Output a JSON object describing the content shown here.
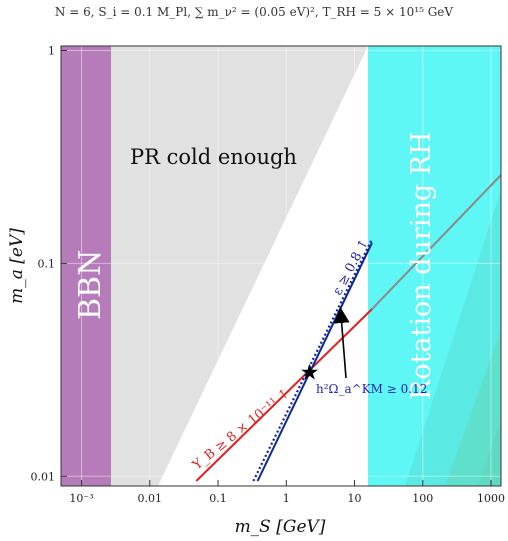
{
  "chart_data": {
    "type": "line",
    "title": "N = 6,   S_i = 0.1 M_Pl,   ∑ m_ν² = (0.05 eV)²,   T_RH = 5 × 10¹⁵ GeV",
    "xlabel": "m_S [GeV]",
    "ylabel": "m_a [eV]",
    "xscale": "log",
    "yscale": "log",
    "xlim": [
      0.0005,
      1400
    ],
    "ylim": [
      0.009,
      1.05
    ],
    "xticks": [
      {
        "v": 0.001,
        "label": "10⁻³"
      },
      {
        "v": 0.01,
        "label": "0.01"
      },
      {
        "v": 0.1,
        "label": "0.1"
      },
      {
        "v": 1,
        "label": "1"
      },
      {
        "v": 10,
        "label": "10"
      },
      {
        "v": 100,
        "label": "100"
      },
      {
        "v": 1000,
        "label": "1000"
      }
    ],
    "yticks": [
      {
        "v": 0.01,
        "label": "0.01"
      },
      {
        "v": 0.1,
        "label": "0.1"
      },
      {
        "v": 1,
        "label": "1"
      }
    ],
    "regions": [
      {
        "name": "BBN",
        "color": "#b67cba",
        "x": [
          0.0005,
          0.004
        ]
      },
      {
        "name": "PR cold enough",
        "color": "#e1e1e1"
      },
      {
        "name": "Rotation during RH",
        "color": "#5ff7f5",
        "x_min": 18
      }
    ],
    "series": [
      {
        "name": "Y_B ≥ 8 × 10⁻¹¹ ↑",
        "color": "#e0211f",
        "style": "solid",
        "x": [
          0.048,
          18
        ],
        "y": [
          0.0095,
          0.061
        ]
      },
      {
        "name": "",
        "color": "#8a8a8a",
        "style": "solid",
        "x": [
          18,
          1400
        ],
        "y": [
          0.061,
          0.26
        ]
      },
      {
        "name": "ε ≥ 0.8 ↑",
        "color": "#1b1bb0",
        "style": "dotted",
        "x": [
          0.33,
          18
        ],
        "y": [
          0.0095,
          0.13
        ]
      },
      {
        "name": "",
        "color": "#0a2a8a",
        "style": "solid",
        "x": [
          0.38,
          18
        ],
        "y": [
          0.0095,
          0.125
        ]
      }
    ],
    "annotations": [
      {
        "text": "h²Ω_a^KM ≥ 0.12",
        "color": "#2020c0"
      },
      {
        "marker": "star",
        "x": 2.2,
        "y": 0.031
      }
    ],
    "grid": true
  }
}
